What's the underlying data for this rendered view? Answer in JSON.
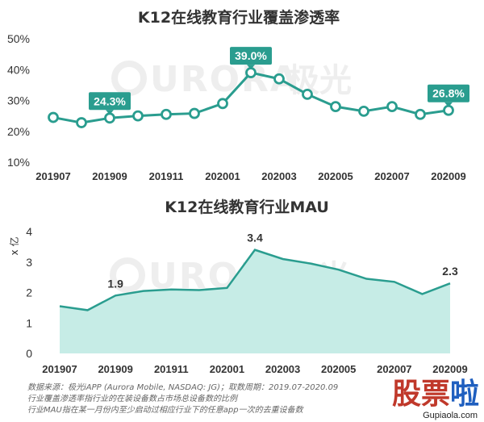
{
  "chart_data": [
    {
      "type": "line",
      "title": "K12在线教育行业覆盖渗透率",
      "ylim": [
        10,
        50
      ],
      "yticks": [
        "10%",
        "20%",
        "30%",
        "40%",
        "50%"
      ],
      "ytick_values": [
        10,
        20,
        30,
        40,
        50
      ],
      "x_tick_labels": [
        "201907",
        "201909",
        "201911",
        "202001",
        "202003",
        "202005",
        "202007",
        "202009"
      ],
      "x": [
        "201907",
        "201908",
        "201909",
        "201910",
        "201911",
        "201912",
        "202001",
        "202002",
        "202003",
        "202004",
        "202005",
        "202006",
        "202007",
        "202008",
        "202009"
      ],
      "series": [
        {
          "values": [
            24.5,
            22.8,
            24.3,
            25.0,
            25.5,
            25.8,
            29.0,
            39.0,
            37.0,
            32.0,
            28.0,
            26.5,
            28.0,
            25.5,
            26.8
          ]
        }
      ],
      "labels": [
        {
          "index": 2,
          "text": "24.3%"
        },
        {
          "index": 7,
          "text": "39.0%"
        },
        {
          "index": 14,
          "text": "26.8%"
        }
      ],
      "grid": false,
      "color": "#2a9d8f",
      "watermark": "URORA",
      "watermark_cn": "极光"
    },
    {
      "type": "area",
      "title": "K12在线教育行业MAU",
      "ylabel": "x 亿",
      "ylim": [
        0,
        4
      ],
      "yticks": [
        "0",
        "1",
        "2",
        "3",
        "4"
      ],
      "ytick_values": [
        0,
        1,
        2,
        3,
        4
      ],
      "x_tick_labels": [
        "201907",
        "201909",
        "201911",
        "202001",
        "202003",
        "202005",
        "202007",
        "202009"
      ],
      "x": [
        "201907",
        "201908",
        "201909",
        "201910",
        "201911",
        "201912",
        "202001",
        "202002",
        "202003",
        "202004",
        "202005",
        "202006",
        "202007",
        "202008",
        "202009"
      ],
      "series": [
        {
          "values": [
            1.55,
            1.42,
            1.9,
            2.05,
            2.1,
            2.08,
            2.15,
            3.4,
            3.1,
            2.95,
            2.75,
            2.45,
            2.35,
            1.95,
            2.3
          ]
        }
      ],
      "labels": [
        {
          "index": 2,
          "text": "1.9"
        },
        {
          "index": 7,
          "text": "3.4"
        },
        {
          "index": 14,
          "text": "2.3"
        }
      ],
      "grid": false,
      "line_color": "#2a9d8f",
      "fill_color": "#c6ece6",
      "watermark": "URORA",
      "watermark_cn": "极光"
    }
  ],
  "footnote": {
    "line1": "数据来源：极光iAPP (Aurora Mobile, NASDAQ: JG)；取数周期：2019.07-2020.09",
    "line2": "行业覆盖渗透率指行业的在装设备数占市场总设备数的比例",
    "line3": "行业MAU指在某一月份内至少启动过相应行业下的任意app一次的去重设备数"
  },
  "brand": {
    "name": "股票啦",
    "url": "Gupiaola.com",
    "color_a": "#c0392b",
    "color_b": "#1f5fbf"
  }
}
